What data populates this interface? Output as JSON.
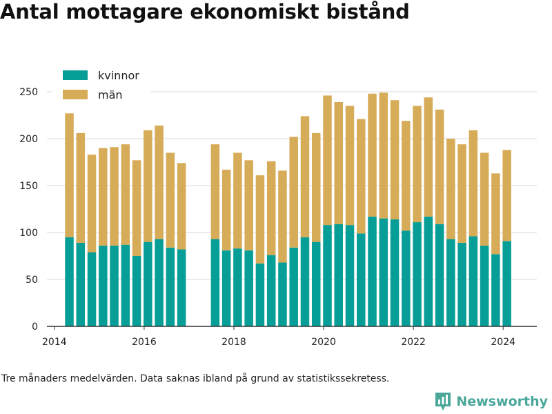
{
  "title": "Antal mottagare ekonomiskt bistånd",
  "footnote": "Tre månaders medelvärden. Data saknas ibland på grund av statistikssekretess.",
  "brand": {
    "name": "Newsworthy"
  },
  "colors": {
    "kvinnor": "#069e96",
    "man": "#d7ac59",
    "grid": "#d9d9d9",
    "axis": "#333333",
    "text": "#222222",
    "brand": "#4aa79a"
  },
  "chart_data": {
    "type": "bar",
    "stacked": true,
    "title": "Antal mottagare ekonomiskt bistånd",
    "xlabel": "",
    "ylabel": "",
    "ylim": [
      0,
      250
    ],
    "yticks": [
      0,
      50,
      100,
      150,
      200,
      250
    ],
    "xticks": [
      "2014",
      "2016",
      "2018",
      "2020",
      "2022",
      "2024"
    ],
    "xlim": [
      "2013-11",
      "2024-10"
    ],
    "grid": true,
    "legend": "top-left",
    "x": [
      "2014-05",
      "2014-08",
      "2014-11",
      "2015-02",
      "2015-05",
      "2015-08",
      "2015-11",
      "2016-02",
      "2016-05",
      "2016-08",
      "2016-11",
      "2017-08",
      "2017-11",
      "2018-02",
      "2018-05",
      "2018-08",
      "2018-11",
      "2019-02",
      "2019-05",
      "2019-08",
      "2019-11",
      "2020-02",
      "2020-05",
      "2020-08",
      "2020-11",
      "2021-02",
      "2021-05",
      "2021-08",
      "2021-11",
      "2022-02",
      "2022-05",
      "2022-08",
      "2022-11",
      "2023-02",
      "2023-05",
      "2023-08",
      "2023-11",
      "2024-02"
    ],
    "series": [
      {
        "name": "kvinnor",
        "values": [
          95,
          89,
          79,
          86,
          86,
          87,
          75,
          90,
          93,
          84,
          82,
          93,
          81,
          83,
          81,
          67,
          76,
          68,
          84,
          95,
          90,
          108,
          109,
          108,
          99,
          117,
          115,
          114,
          102,
          111,
          117,
          109,
          93,
          89,
          96,
          86,
          77,
          91
        ]
      },
      {
        "name": "män",
        "values": [
          132,
          117,
          104,
          104,
          105,
          107,
          102,
          119,
          121,
          101,
          92,
          101,
          86,
          102,
          96,
          94,
          100,
          98,
          118,
          129,
          116,
          138,
          130,
          127,
          122,
          131,
          134,
          127,
          117,
          124,
          127,
          122,
          107,
          105,
          113,
          99,
          86,
          97
        ]
      }
    ]
  }
}
